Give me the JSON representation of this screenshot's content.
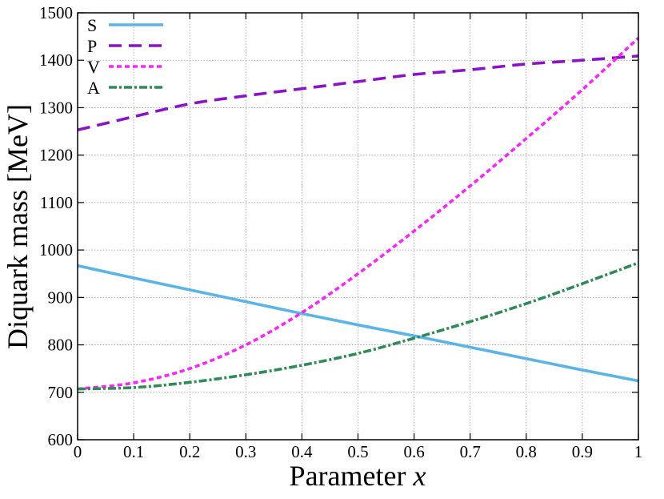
{
  "chart_data": {
    "type": "line",
    "xlabel": "Parameter",
    "xlabel_var": "x",
    "ylabel": "Diquark mass [MeV]",
    "xlim": [
      0,
      1
    ],
    "ylim": [
      600,
      1500
    ],
    "grid": true,
    "legend_position": "top-left",
    "x_ticks": [
      "0",
      "0.1",
      "0.2",
      "0.3",
      "0.4",
      "0.5",
      "0.6",
      "0.7",
      "0.8",
      "0.9",
      "1"
    ],
    "y_ticks": [
      "600",
      "700",
      "800",
      "900",
      "1000",
      "1100",
      "1200",
      "1300",
      "1400",
      "1500"
    ],
    "x": [
      0,
      0.1,
      0.2,
      0.3,
      0.4,
      0.5,
      0.6,
      0.7,
      0.8,
      0.9,
      1.0
    ],
    "series": [
      {
        "name": "S",
        "color": "#5ab4e5",
        "style": "solid",
        "values": [
          967,
          941,
          916,
          891,
          866,
          842,
          819,
          795,
          771,
          747,
          724
        ]
      },
      {
        "name": "P",
        "color": "#8a12c8",
        "style": "dashed",
        "values": [
          1253,
          1281,
          1308,
          1325,
          1340,
          1355,
          1370,
          1380,
          1392,
          1400,
          1409
        ]
      },
      {
        "name": "V",
        "color": "#ff22ff",
        "style": "dotted",
        "values": [
          707,
          720,
          750,
          800,
          868,
          950,
          1040,
          1135,
          1235,
          1338,
          1447
        ]
      },
      {
        "name": "A",
        "color": "#2e8b57",
        "style": "dashdot",
        "values": [
          707,
          710,
          721,
          737,
          757,
          782,
          814,
          849,
          887,
          929,
          973
        ]
      }
    ]
  }
}
